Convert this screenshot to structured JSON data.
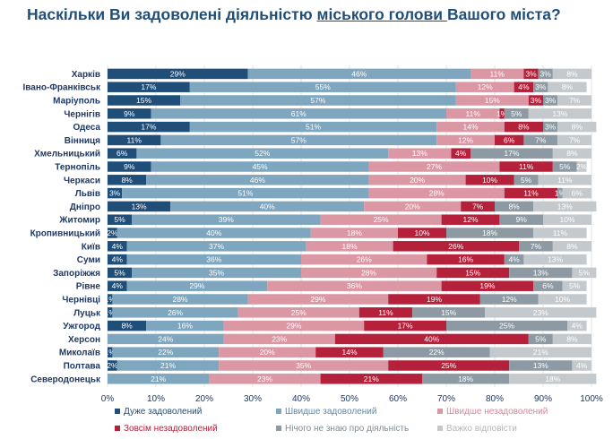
{
  "title": {
    "part1": "Наскільки Ви задоволені діяльністю ",
    "part2": "міського голови ",
    "part3": "Вашого міста?"
  },
  "chart_data": {
    "type": "bar",
    "orientation": "horizontal",
    "stacked": true,
    "categories": [
      "Харків",
      "Івано-Франківськ",
      "Маріуполь",
      "Чернігів",
      "Одеса",
      "Вінниця",
      "Хмельницький",
      "Тернопіль",
      "Черкаси",
      "Львів",
      "Дніпро",
      "Житомир",
      "Кропивницький",
      "Київ",
      "Суми",
      "Запоріжжя",
      "Рівне",
      "Чернівці",
      "Луцьк",
      "Ужгород",
      "Херсон",
      "Миколаїв",
      "Полтава",
      "Северодонецьк"
    ],
    "series": [
      {
        "name": "Дуже задоволений",
        "color": "#1f4e79",
        "label_color": "#1f4e79",
        "values": [
          29,
          17,
          15,
          9,
          17,
          11,
          6,
          9,
          8,
          3,
          13,
          5,
          2,
          4,
          4,
          5,
          4,
          1,
          1,
          8,
          0,
          1,
          2,
          0
        ]
      },
      {
        "name": "Швидше задоволений",
        "color": "#7ea6bf",
        "label_color": "#5b8ba8",
        "values": [
          46,
          55,
          57,
          61,
          51,
          57,
          52,
          45,
          46,
          51,
          40,
          39,
          40,
          37,
          36,
          35,
          29,
          28,
          26,
          16,
          24,
          22,
          21,
          21
        ]
      },
      {
        "name": "Швидше незадоволений",
        "color": "#dc97a4",
        "label_color": "#d9869a",
        "values": [
          11,
          12,
          15,
          11,
          14,
          12,
          13,
          27,
          20,
          28,
          20,
          25,
          18,
          18,
          26,
          28,
          36,
          29,
          25,
          29,
          23,
          20,
          35,
          23
        ]
      },
      {
        "name": "Зовсім незадоволений",
        "color": "#b5203b",
        "label_color": "#b5203b",
        "values": [
          3,
          4,
          3,
          1,
          8,
          6,
          4,
          11,
          10,
          11,
          7,
          12,
          10,
          26,
          16,
          15,
          19,
          19,
          11,
          17,
          40,
          14,
          25,
          21
        ]
      },
      {
        "name": "Нічого не знаю про діяльність",
        "color": "#8d9aa3",
        "label_color": "#7f8c95",
        "values": [
          3,
          3,
          3,
          5,
          3,
          7,
          17,
          5,
          5,
          1,
          8,
          9,
          18,
          7,
          4,
          13,
          6,
          12,
          15,
          25,
          5,
          22,
          13,
          18
        ]
      },
      {
        "name": "Важко відповісти",
        "color": "#c4c9cd",
        "label_color": "#b3b8bc",
        "values": [
          8,
          8,
          7,
          13,
          8,
          7,
          8,
          2,
          11,
          6,
          13,
          10,
          11,
          8,
          13,
          5,
          5,
          10,
          23,
          4,
          8,
          21,
          4,
          18
        ]
      }
    ],
    "value_labels": [
      [
        "29%",
        "46%",
        "11%",
        "3%",
        "3%",
        "8%"
      ],
      [
        "17%",
        "55%",
        "12%",
        "4%",
        "3%",
        "8%"
      ],
      [
        "15%",
        "57%",
        "15%",
        "3%",
        "3%",
        "7%"
      ],
      [
        "9%",
        "61%",
        "11%",
        "1%",
        "5%",
        "13%"
      ],
      [
        "17%",
        "51%",
        "14%",
        "8%",
        "3%",
        "8%"
      ],
      [
        "11%",
        "57%",
        "12%",
        "6%",
        "7%",
        "7%"
      ],
      [
        "6%",
        "52%",
        "13%",
        "4%",
        "17%",
        "8%"
      ],
      [
        "9%",
        "45%",
        "27%",
        "11%",
        "5%",
        "2%"
      ],
      [
        "8%",
        "46%",
        "20%",
        "10%",
        "5%",
        "11%"
      ],
      [
        "3%",
        "51%",
        "28%",
        "11%",
        "1%",
        "6%"
      ],
      [
        "13%",
        "40%",
        "20%",
        "7%",
        "8%",
        "13%"
      ],
      [
        "5%",
        "39%",
        "25%",
        "12%",
        "9%",
        "10%"
      ],
      [
        "2%",
        "40%",
        "18%",
        "10%",
        "18%",
        "11%"
      ],
      [
        "4%",
        "37%",
        "18%",
        "26%",
        "7%",
        "8%"
      ],
      [
        "4%",
        "36%",
        "26%",
        "16%",
        "4%",
        "13%"
      ],
      [
        "5%",
        "35%",
        "28%",
        "15%",
        "13%",
        "5%"
      ],
      [
        "4%",
        "29%",
        "36%",
        "19%",
        "6%",
        "5%"
      ],
      [
        "1%",
        "28%",
        "29%",
        "19%",
        "12%",
        "10%"
      ],
      [
        "1%",
        "26%",
        "25%",
        "11%",
        "15%",
        "23%"
      ],
      [
        "8%",
        "16%",
        "29%",
        "17%",
        "25%",
        "4%"
      ],
      [
        "",
        "24%",
        "23%",
        "40%",
        "5%",
        "8%"
      ],
      [
        "1%",
        "22%",
        "20%",
        "14%",
        "22%",
        "21%"
      ],
      [
        "2%",
        "21%",
        "35%",
        "25%",
        "13%",
        "4%"
      ],
      [
        "",
        "21%",
        "23%",
        "21%",
        "18%",
        "18%"
      ]
    ],
    "x_ticks": [
      "0%",
      "10%",
      "20%",
      "30%",
      "40%",
      "50%",
      "60%",
      "70%",
      "80%",
      "90%",
      "100%"
    ],
    "xlim": [
      0,
      100
    ],
    "legend_position": "bottom",
    "grid": true
  }
}
